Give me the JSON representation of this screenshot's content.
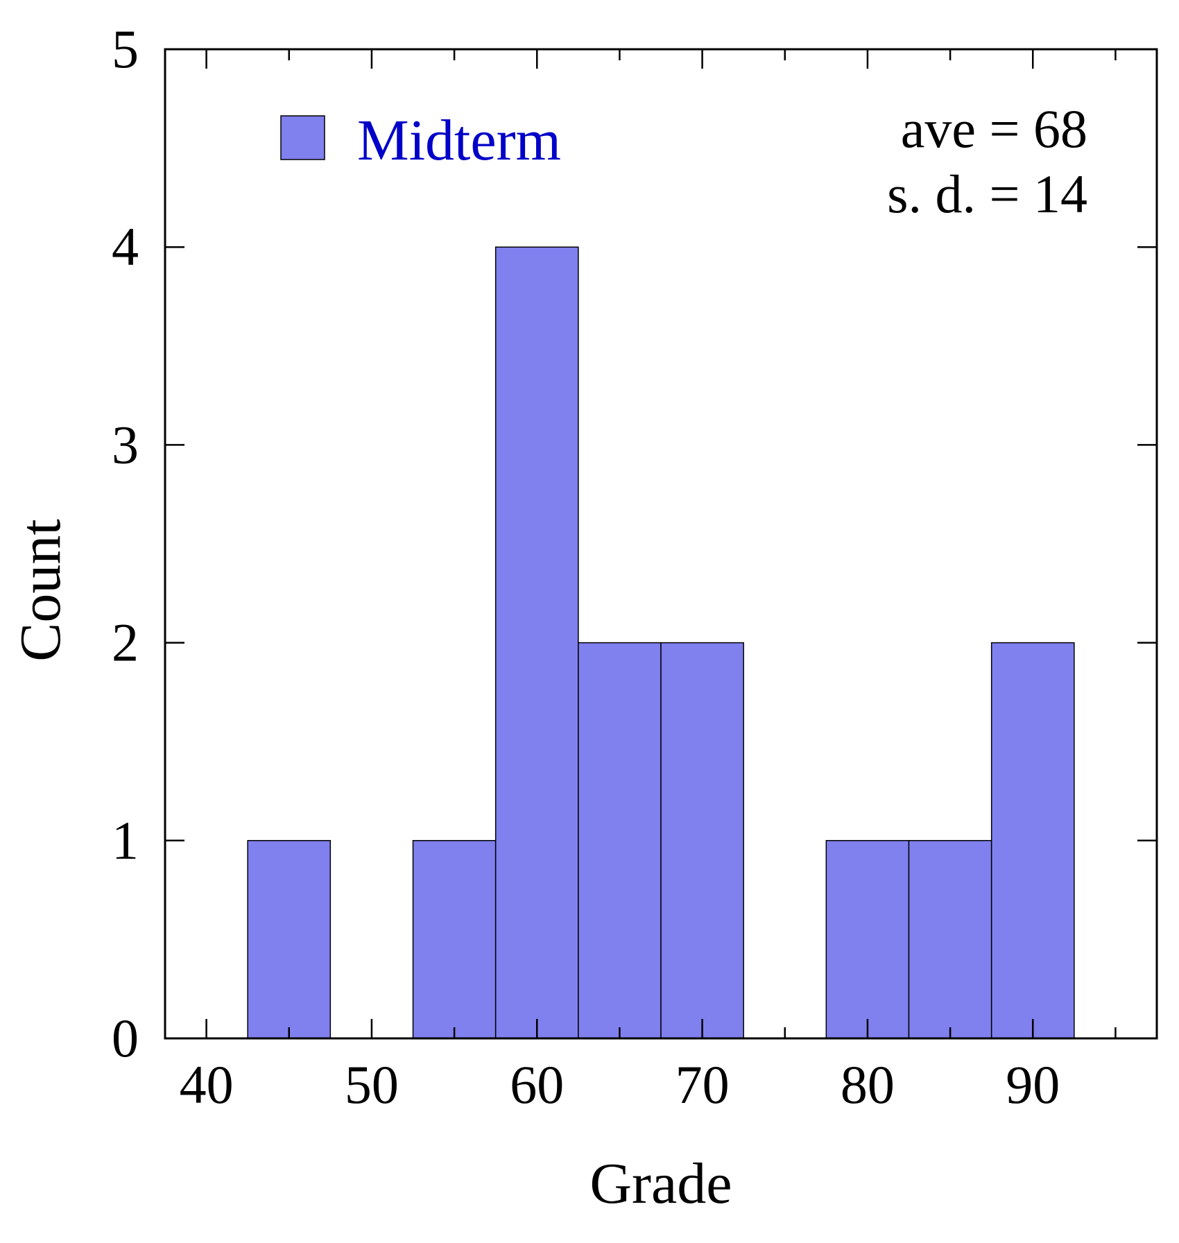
{
  "chart_data": {
    "type": "bar",
    "title": "",
    "xlabel": "Grade",
    "ylabel": "Count",
    "bin_width": 5,
    "bin_centers": [
      45,
      50,
      55,
      60,
      65,
      70,
      75,
      80,
      85,
      90
    ],
    "values": [
      1,
      0,
      1,
      4,
      2,
      2,
      0,
      1,
      1,
      2
    ],
    "xlim": [
      37.5,
      97.5
    ],
    "ylim": [
      0,
      5
    ],
    "xticks": [
      40,
      50,
      60,
      70,
      80,
      90
    ],
    "xtick_labels": [
      "40",
      "50",
      "60",
      "70",
      "80",
      "90"
    ],
    "yticks": [
      0,
      1,
      2,
      3,
      4,
      5
    ],
    "ytick_labels": [
      "0",
      "1",
      "2",
      "3",
      "4",
      "5"
    ],
    "series": [
      {
        "name": "Midterm",
        "color": "#8080ee"
      }
    ],
    "legend_position": "top-left",
    "legend_text_color": "#0000c8",
    "annotations": [
      "ave = 68",
      "s. d. = 14"
    ],
    "annotation_position": "top-right",
    "grid": false
  }
}
